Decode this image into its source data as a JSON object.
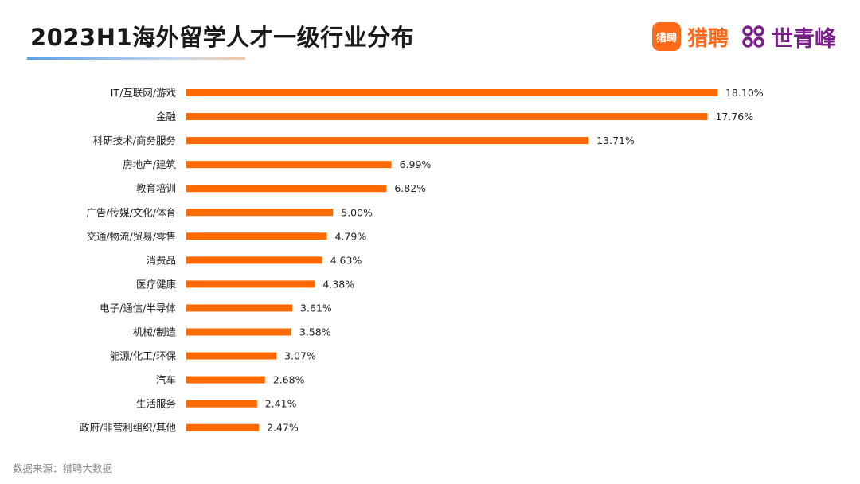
{
  "title": "2023H1海外留学人才一级行业分布",
  "logos": {
    "liepin_badge": "猎聘",
    "liepin_text": "猎聘",
    "shiqingfeng_text": "世青峰",
    "liepin_color": "#ff6a1a",
    "shiqingfeng_color": "#7a1f8a"
  },
  "source": "数据来源：猎聘大数据",
  "chart_data": {
    "type": "bar",
    "orientation": "horizontal",
    "bar_color": "#ff6a00",
    "categories": [
      "IT/互联网/游戏",
      "金融",
      "科研技术/商务服务",
      "房地产/建筑",
      "教育培训",
      "广告/传媒/文化/体育",
      "交通/物流/贸易/零售",
      "消费品",
      "医疗健康",
      "电子/通信/半导体",
      "机械/制造",
      "能源/化工/环保",
      "汽车",
      "生活服务",
      "政府/非营利组织/其他"
    ],
    "values": [
      18.1,
      17.76,
      13.71,
      6.99,
      6.82,
      5.0,
      4.79,
      4.63,
      4.38,
      3.61,
      3.58,
      3.07,
      2.68,
      2.41,
      2.47
    ],
    "data_labels": [
      "18.10%",
      "17.76%",
      "13.71%",
      "6.99%",
      "6.82%",
      "5.00%",
      "4.79%",
      "4.63%",
      "4.38%",
      "3.61%",
      "3.58%",
      "3.07%",
      "2.68%",
      "2.41%",
      "2.47%"
    ],
    "grid": false,
    "legend": "none"
  }
}
